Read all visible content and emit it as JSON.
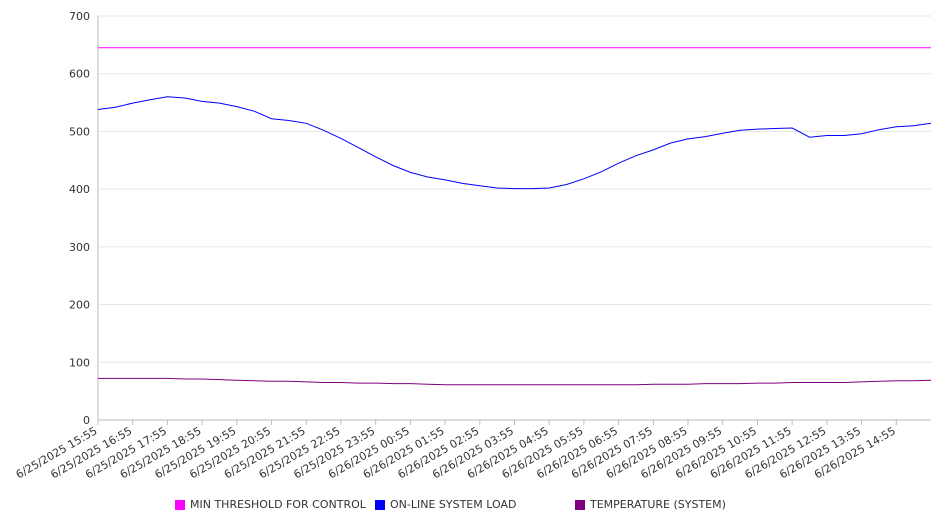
{
  "chart_data": {
    "type": "line",
    "title": "",
    "xlabel": "",
    "ylabel": "",
    "ylim": [
      0,
      700
    ],
    "yticks": [
      0,
      100,
      200,
      300,
      400,
      500,
      600,
      700
    ],
    "grid": true,
    "legend_position": "bottom",
    "x_tick_labels": [
      "6/25/2025 15:55",
      "6/25/2025 16:55",
      "6/25/2025 17:55",
      "6/25/2025 18:55",
      "6/25/2025 19:55",
      "6/25/2025 20:55",
      "6/25/2025 21:55",
      "6/25/2025 22:55",
      "6/25/2025 23:55",
      "6/26/2025 00:55",
      "6/26/2025 01:55",
      "6/26/2025 02:55",
      "6/26/2025 03:55",
      "6/26/2025 04:55",
      "6/26/2025 05:55",
      "6/26/2025 06:55",
      "6/26/2025 07:55",
      "6/26/2025 08:55",
      "6/26/2025 09:55",
      "6/26/2025 10:55",
      "6/26/2025 11:55",
      "6/26/2025 12:55",
      "6/26/2025 13:55",
      "6/26/2025 14:55"
    ],
    "x": [
      "6/25/2025 15:55",
      "6/25/2025 16:25",
      "6/25/2025 16:55",
      "6/25/2025 17:25",
      "6/25/2025 17:55",
      "6/25/2025 18:25",
      "6/25/2025 18:55",
      "6/25/2025 19:25",
      "6/25/2025 19:55",
      "6/25/2025 20:25",
      "6/25/2025 20:55",
      "6/25/2025 21:25",
      "6/25/2025 21:55",
      "6/25/2025 22:25",
      "6/25/2025 22:55",
      "6/25/2025 23:25",
      "6/25/2025 23:55",
      "6/26/2025 00:25",
      "6/26/2025 00:55",
      "6/26/2025 01:25",
      "6/26/2025 01:55",
      "6/26/2025 02:25",
      "6/26/2025 02:55",
      "6/26/2025 03:25",
      "6/26/2025 03:55",
      "6/26/2025 04:25",
      "6/26/2025 04:55",
      "6/26/2025 05:25",
      "6/26/2025 05:55",
      "6/26/2025 06:25",
      "6/26/2025 06:55",
      "6/26/2025 07:25",
      "6/26/2025 07:55",
      "6/26/2025 08:25",
      "6/26/2025 08:55",
      "6/26/2025 09:25",
      "6/26/2025 09:55",
      "6/26/2025 10:25",
      "6/26/2025 10:55",
      "6/26/2025 11:25",
      "6/26/2025 11:55",
      "6/26/2025 12:25",
      "6/26/2025 12:55",
      "6/26/2025 13:25",
      "6/26/2025 13:55",
      "6/26/2025 14:25",
      "6/26/2025 14:55",
      "6/26/2025 15:25",
      "6/26/2025 15:55"
    ],
    "series": [
      {
        "name": "MIN THRESHOLD FOR CONTROL",
        "color": "#ff00ff",
        "values": [
          645,
          645,
          645,
          645,
          645,
          645,
          645,
          645,
          645,
          645,
          645,
          645,
          645,
          645,
          645,
          645,
          645,
          645,
          645,
          645,
          645,
          645,
          645,
          645,
          645,
          645,
          645,
          645,
          645,
          645,
          645,
          645,
          645,
          645,
          645,
          645,
          645,
          645,
          645,
          645,
          645,
          645,
          645,
          645,
          645,
          645,
          645,
          645,
          645
        ]
      },
      {
        "name": "ON-LINE SYSTEM LOAD",
        "color": "#0000ff",
        "values": [
          538,
          542,
          549,
          555,
          560,
          558,
          552,
          549,
          543,
          535,
          522,
          519,
          514,
          502,
          488,
          472,
          456,
          441,
          429,
          421,
          416,
          410,
          406,
          402,
          401,
          401,
          402,
          408,
          418,
          430,
          445,
          458,
          468,
          480,
          487,
          491,
          497,
          502,
          504,
          505,
          506,
          490,
          493,
          493,
          496,
          503,
          508,
          510,
          514
        ]
      },
      {
        "name": "TEMPERATURE (SYSTEM)",
        "color": "#800080",
        "values": [
          72,
          72,
          72,
          72,
          72,
          71,
          71,
          70,
          69,
          68,
          67,
          67,
          66,
          65,
          65,
          64,
          64,
          63,
          63,
          62,
          61,
          61,
          61,
          61,
          61,
          61,
          61,
          61,
          61,
          61,
          61,
          61,
          62,
          62,
          62,
          63,
          63,
          63,
          64,
          64,
          65,
          65,
          65,
          65,
          66,
          67,
          68,
          68,
          69
        ]
      }
    ]
  }
}
